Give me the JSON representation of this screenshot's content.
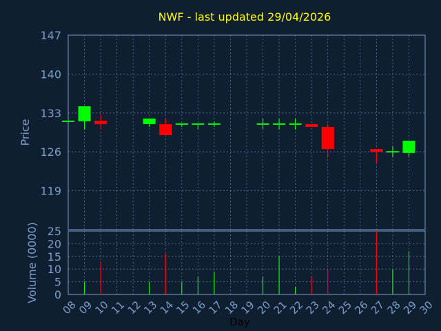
{
  "chart_data": [
    {
      "type": "candlestick",
      "title": "NWF - last updated 29/04/2026",
      "ylabel": "Price",
      "ylim": [
        112,
        147
      ],
      "yticks": [
        147,
        140,
        133,
        126,
        119
      ],
      "colors": {
        "up": "#00ff00",
        "down": "#ff0000",
        "flat": "#00ff00"
      },
      "candles": [
        {
          "day": "08",
          "open": 131.5,
          "high": 131.5,
          "low": 131.5,
          "close": 131.5
        },
        {
          "day": "09",
          "open": 131.5,
          "high": 134.2,
          "low": 130.0,
          "close": 134.2
        },
        {
          "day": "10",
          "open": 131.6,
          "high": 133.0,
          "low": 130.0,
          "close": 131.0
        },
        {
          "day": "13",
          "open": 131.0,
          "high": 132.0,
          "low": 130.5,
          "close": 132.0
        },
        {
          "day": "14",
          "open": 131.0,
          "high": 132.0,
          "low": 129.0,
          "close": 129.0
        },
        {
          "day": "15",
          "open": 131.0,
          "high": 131.0,
          "low": 130.5,
          "close": 131.0
        },
        {
          "day": "16",
          "open": 131.0,
          "high": 131.0,
          "low": 130.0,
          "close": 131.0
        },
        {
          "day": "17",
          "open": 131.0,
          "high": 131.5,
          "low": 130.5,
          "close": 131.0
        },
        {
          "day": "20",
          "open": 131.0,
          "high": 132.0,
          "low": 130.0,
          "close": 131.0
        },
        {
          "day": "21",
          "open": 131.0,
          "high": 132.0,
          "low": 130.0,
          "close": 131.0
        },
        {
          "day": "22",
          "open": 131.0,
          "high": 132.0,
          "low": 130.0,
          "close": 131.0
        },
        {
          "day": "23",
          "open": 131.0,
          "high": 131.0,
          "low": 130.5,
          "close": 130.5
        },
        {
          "day": "24",
          "open": 130.5,
          "high": 131.0,
          "low": 125.0,
          "close": 126.5
        },
        {
          "day": "27",
          "open": 126.5,
          "high": 126.5,
          "low": 124.0,
          "close": 126.0
        },
        {
          "day": "28",
          "open": 126.0,
          "high": 127.0,
          "low": 125.0,
          "close": 126.0
        },
        {
          "day": "29",
          "open": 125.8,
          "high": 128.0,
          "low": 125.0,
          "close": 128.0
        }
      ]
    },
    {
      "type": "bar",
      "ylabel": "Volume (0000)",
      "xlabel": "Day",
      "ylim": [
        0,
        25
      ],
      "yticks": [
        0,
        5,
        10,
        15,
        20,
        25
      ],
      "categories": [
        "08",
        "09",
        "10",
        "11",
        "12",
        "13",
        "14",
        "15",
        "16",
        "17",
        "18",
        "19",
        "20",
        "21",
        "22",
        "23",
        "24",
        "25",
        "26",
        "27",
        "28",
        "29",
        "30"
      ],
      "bars": [
        {
          "day": "09",
          "value": 5,
          "color": "#00ff00"
        },
        {
          "day": "10",
          "value": 13,
          "color": "#ff0000"
        },
        {
          "day": "13",
          "value": 5,
          "color": "#00ff00"
        },
        {
          "day": "14",
          "value": 16,
          "color": "#ff0000"
        },
        {
          "day": "15",
          "value": 5,
          "color": "#00ff00"
        },
        {
          "day": "16",
          "value": 7,
          "color": "#00ff00"
        },
        {
          "day": "17",
          "value": 9,
          "color": "#00ff00"
        },
        {
          "day": "20",
          "value": 7,
          "color": "#00ff00"
        },
        {
          "day": "21",
          "value": 15,
          "color": "#00ff00"
        },
        {
          "day": "22",
          "value": 3,
          "color": "#00ff00"
        },
        {
          "day": "23",
          "value": 7,
          "color": "#ff0000"
        },
        {
          "day": "24",
          "value": 10,
          "color": "#ff0000"
        },
        {
          "day": "27",
          "value": 25,
          "color": "#ff0000"
        },
        {
          "day": "28",
          "value": 10,
          "color": "#00ff00"
        },
        {
          "day": "29",
          "value": 17,
          "color": "#00ff00"
        }
      ]
    }
  ]
}
